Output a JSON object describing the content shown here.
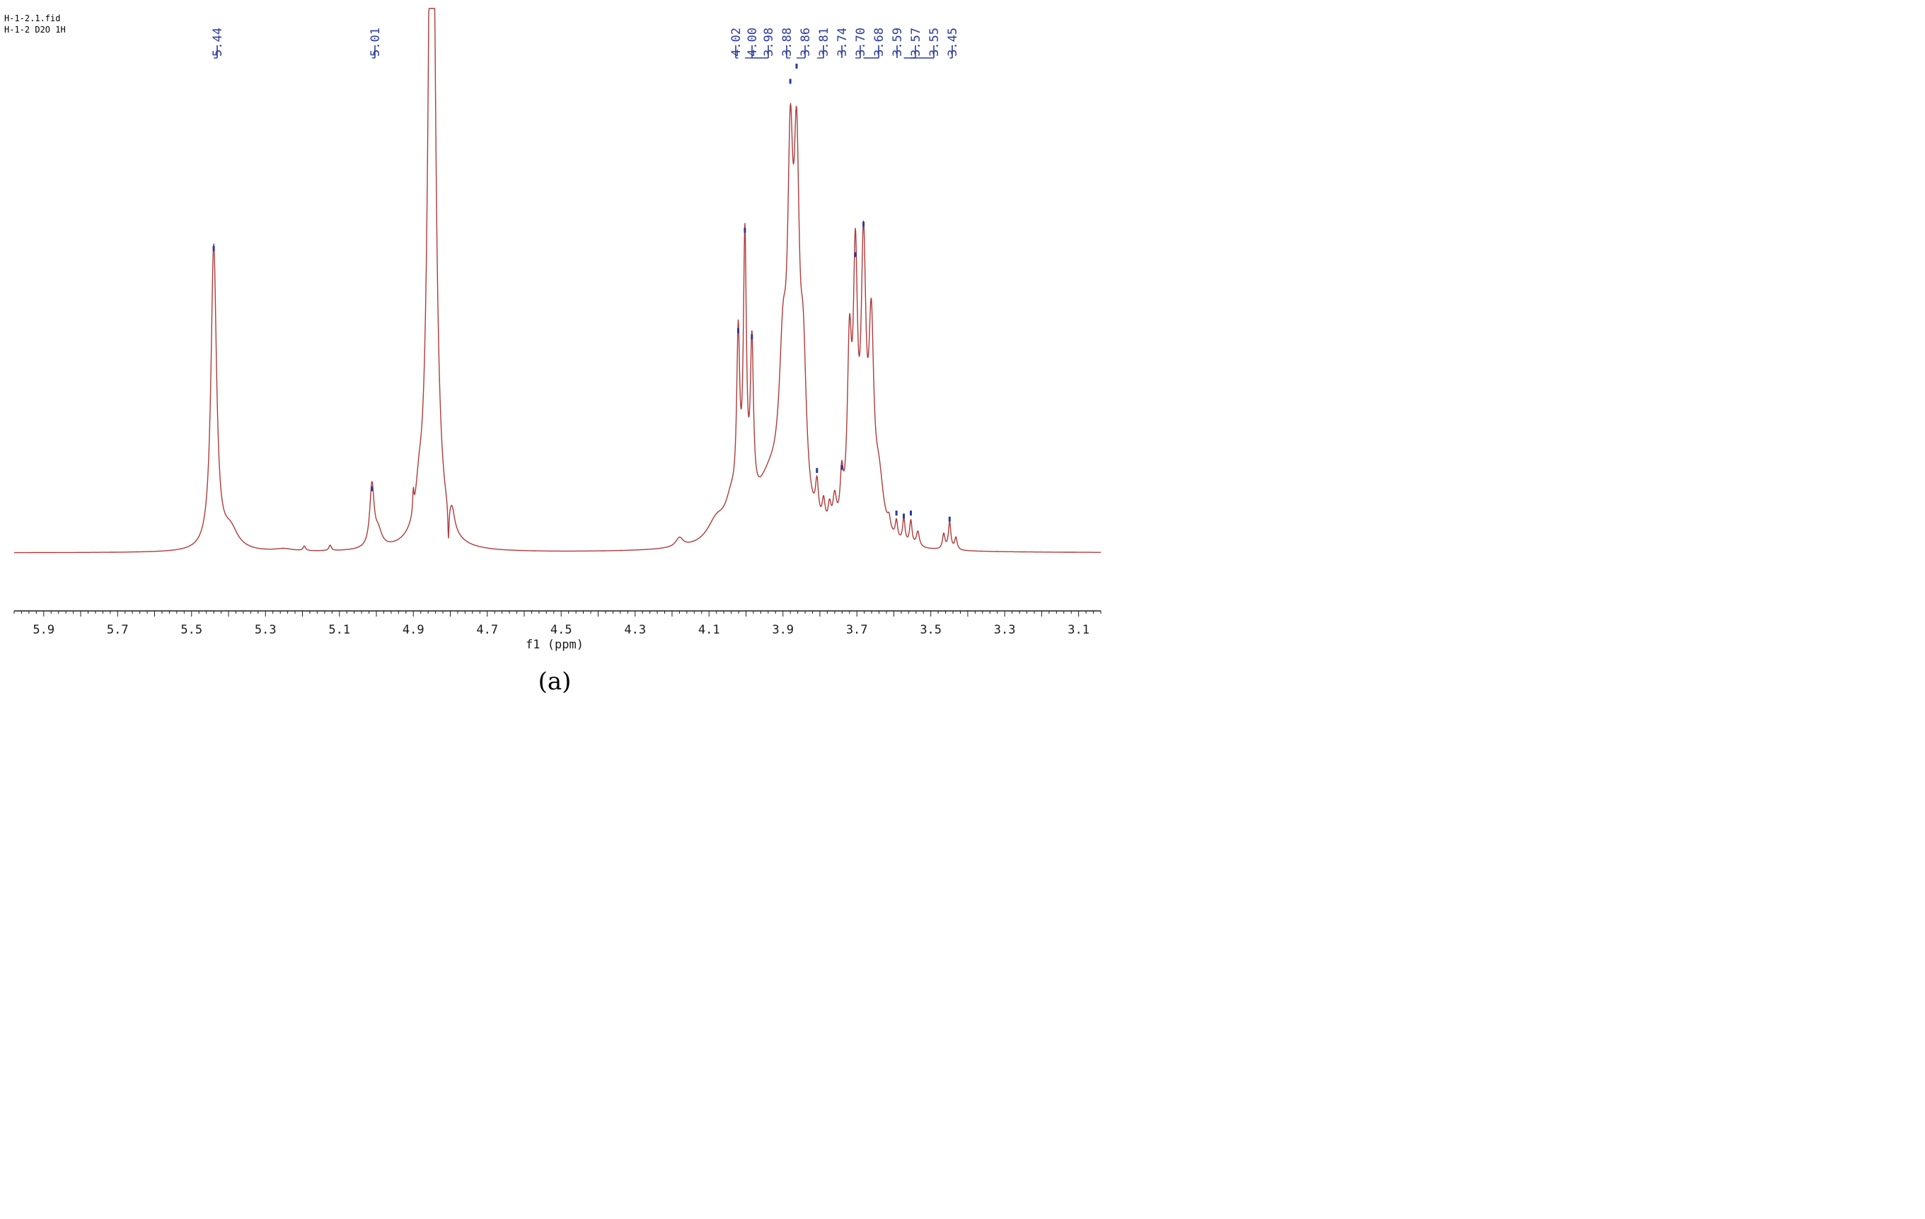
{
  "header": {
    "line1": "H-1-2.1.fid",
    "line2": "H-1-2  D2O  1H"
  },
  "panel_label": "(a)",
  "colors": {
    "spectrum": "#b03a3a",
    "peak_marker": "#2b3a9e",
    "axis": "#1a1a1a"
  },
  "chart_data": {
    "type": "line",
    "xlabel": "f1 (ppm)",
    "ylabel": "",
    "xlim": [
      5.98,
      3.04
    ],
    "ylim": [
      -0.05,
      1.82
    ],
    "x_reversed": true,
    "grid": false,
    "tick_labels": [
      "5.9",
      "5.7",
      "5.5",
      "5.3",
      "5.1",
      "4.9",
      "4.7",
      "4.5",
      "4.3",
      "4.1",
      "3.9",
      "3.7",
      "3.5",
      "3.3",
      "3.1"
    ],
    "tick_values": [
      5.9,
      5.7,
      5.5,
      5.3,
      5.1,
      4.9,
      4.7,
      4.5,
      4.3,
      4.1,
      3.9,
      3.7,
      3.5,
      3.3,
      3.1
    ],
    "peak_labels": [
      "5.44",
      "5.01",
      "4.02",
      "4.00",
      "3.98",
      "3.88",
      "3.86",
      "3.81",
      "3.74",
      "3.70",
      "3.68",
      "3.59",
      "3.57",
      "3.55",
      "3.45"
    ],
    "peak_markers": [
      {
        "x": 5.44,
        "y": 1.0
      },
      {
        "x": 5.012,
        "y": 0.21
      },
      {
        "x": 4.021,
        "y": 0.73
      },
      {
        "x": 4.003,
        "y": 1.06
      },
      {
        "x": 3.984,
        "y": 0.71
      },
      {
        "x": 3.88,
        "y": 1.55
      },
      {
        "x": 3.863,
        "y": 1.6
      },
      {
        "x": 3.808,
        "y": 0.27
      },
      {
        "x": 3.741,
        "y": 0.28
      },
      {
        "x": 3.704,
        "y": 0.98
      },
      {
        "x": 3.682,
        "y": 1.08
      },
      {
        "x": 3.593,
        "y": 0.13
      },
      {
        "x": 3.573,
        "y": 0.12
      },
      {
        "x": 3.554,
        "y": 0.13
      },
      {
        "x": 3.449,
        "y": 0.11
      }
    ],
    "series": [
      {
        "peaks": [
          {
            "x0": 5.44,
            "h": 1.0,
            "w": 0.009
          },
          {
            "x0": 5.395,
            "h": 0.065,
            "w": 0.025
          },
          {
            "x0": 5.25,
            "h": 0.008,
            "w": 0.03
          },
          {
            "x0": 5.195,
            "h": 0.015,
            "w": 0.004
          },
          {
            "x0": 5.125,
            "h": 0.018,
            "w": 0.004
          },
          {
            "x0": 5.012,
            "h": 0.205,
            "w": 0.007
          },
          {
            "x0": 4.995,
            "h": 0.05,
            "w": 0.012
          },
          {
            "x0": 4.9,
            "h": 0.07,
            "w": 0.002
          },
          {
            "x0": 4.885,
            "h": 0.09,
            "w": 0.01
          },
          {
            "x0": 4.85,
            "h": 3.0,
            "w": 0.01
          },
          {
            "x0": 4.805,
            "h": -0.12,
            "w": 0.002
          },
          {
            "x0": 4.795,
            "h": 0.06,
            "w": 0.008
          },
          {
            "x0": 4.18,
            "h": 0.03,
            "w": 0.012
          },
          {
            "x0": 4.08,
            "h": 0.07,
            "w": 0.03
          },
          {
            "x0": 4.04,
            "h": 0.1,
            "w": 0.02
          },
          {
            "x0": 4.021,
            "h": 0.56,
            "w": 0.005
          },
          {
            "x0": 4.003,
            "h": 0.89,
            "w": 0.005
          },
          {
            "x0": 3.984,
            "h": 0.52,
            "w": 0.005
          },
          {
            "x0": 3.935,
            "h": 0.2,
            "w": 0.05
          },
          {
            "x0": 3.9,
            "h": 0.43,
            "w": 0.012
          },
          {
            "x0": 3.88,
            "h": 1.0,
            "w": 0.009
          },
          {
            "x0": 3.863,
            "h": 1.02,
            "w": 0.009
          },
          {
            "x0": 3.845,
            "h": 0.45,
            "w": 0.01
          },
          {
            "x0": 3.808,
            "h": 0.12,
            "w": 0.005
          },
          {
            "x0": 3.79,
            "h": 0.08,
            "w": 0.005
          },
          {
            "x0": 3.774,
            "h": 0.07,
            "w": 0.005
          },
          {
            "x0": 3.76,
            "h": 0.1,
            "w": 0.006
          },
          {
            "x0": 3.741,
            "h": 0.15,
            "w": 0.005
          },
          {
            "x0": 3.72,
            "h": 0.56,
            "w": 0.007
          },
          {
            "x0": 3.704,
            "h": 0.82,
            "w": 0.007
          },
          {
            "x0": 3.682,
            "h": 0.88,
            "w": 0.008
          },
          {
            "x0": 3.661,
            "h": 0.62,
            "w": 0.008
          },
          {
            "x0": 3.64,
            "h": 0.18,
            "w": 0.015
          },
          {
            "x0": 3.613,
            "h": 0.04,
            "w": 0.005
          },
          {
            "x0": 3.593,
            "h": 0.06,
            "w": 0.004
          },
          {
            "x0": 3.573,
            "h": 0.08,
            "w": 0.004
          },
          {
            "x0": 3.554,
            "h": 0.08,
            "w": 0.004
          },
          {
            "x0": 3.535,
            "h": 0.05,
            "w": 0.005
          },
          {
            "x0": 3.465,
            "h": 0.05,
            "w": 0.004
          },
          {
            "x0": 3.449,
            "h": 0.09,
            "w": 0.004
          },
          {
            "x0": 3.432,
            "h": 0.04,
            "w": 0.004
          }
        ]
      }
    ]
  }
}
